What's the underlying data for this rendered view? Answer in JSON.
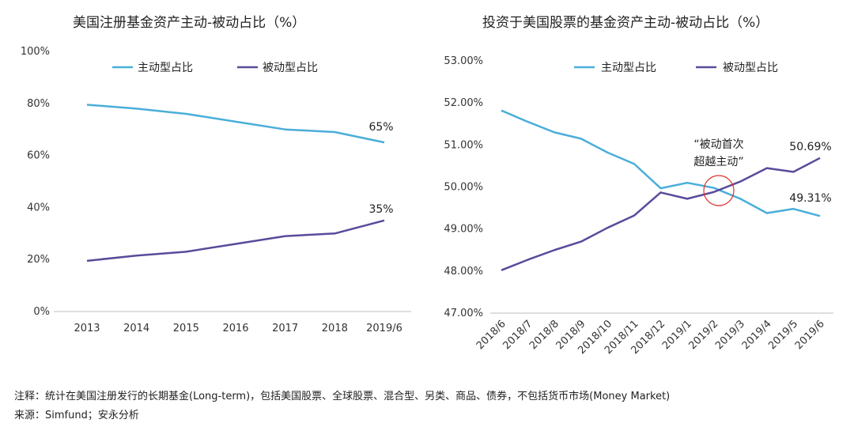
{
  "colors": {
    "active": "#4aaed9",
    "passive": "#5b4a9b",
    "highlight": "#e0322a"
  },
  "chart_data": [
    {
      "type": "line",
      "title": "美国注册基金资产主动-被动占比（%）",
      "categories": [
        "2013",
        "2014",
        "2015",
        "2016",
        "2017",
        "2018",
        "2019/6"
      ],
      "yticks": [
        "0%",
        "20%",
        "40%",
        "60%",
        "80%",
        "100%"
      ],
      "ylim": [
        0,
        100
      ],
      "series": [
        {
          "name": "主动型占比",
          "values": [
            79.5,
            78,
            76,
            73,
            70,
            69,
            65
          ]
        },
        {
          "name": "被动型占比",
          "values": [
            19.5,
            21.5,
            23,
            26,
            29,
            30,
            35
          ]
        }
      ],
      "end_labels": [
        "65%",
        "35%"
      ],
      "legend": "top"
    },
    {
      "type": "line",
      "title": "投资于美国股票的基金资产主动-被动占比（%）",
      "categories": [
        "2018/6",
        "2018/7",
        "2018/8",
        "2018/9",
        "2018/10",
        "2018/11",
        "2018/12",
        "2019/1",
        "2019/2",
        "2019/3",
        "2019/4",
        "2019/5",
        "2019/6"
      ],
      "yticks": [
        "47.00%",
        "48.00%",
        "49.00%",
        "50.00%",
        "51.00%",
        "52.00%",
        "53.00%"
      ],
      "ylim": [
        47,
        53
      ],
      "series": [
        {
          "name": "主动型占比",
          "values": [
            51.82,
            51.55,
            51.3,
            51.15,
            50.82,
            50.55,
            49.97,
            50.1,
            49.98,
            49.72,
            49.38,
            49.48,
            49.31
          ]
        },
        {
          "name": "被动型占比",
          "values": [
            48.02,
            48.27,
            48.5,
            48.7,
            49.03,
            49.32,
            49.87,
            49.72,
            49.88,
            50.13,
            50.45,
            50.36,
            50.69
          ]
        }
      ],
      "end_labels": [
        "49.31%",
        "50.69%"
      ],
      "annotation": {
        "line1": "“被动首次",
        "line2": "超越主动”"
      },
      "legend": "top"
    }
  ],
  "footer": {
    "note": "注释：统计在美国注册发行的长期基金(Long-term)，包括美国股票、全球股票、混合型、另类、商品、债券，不包括货币市场(Money Market)",
    "source": "来源：Simfund；安永分析"
  }
}
